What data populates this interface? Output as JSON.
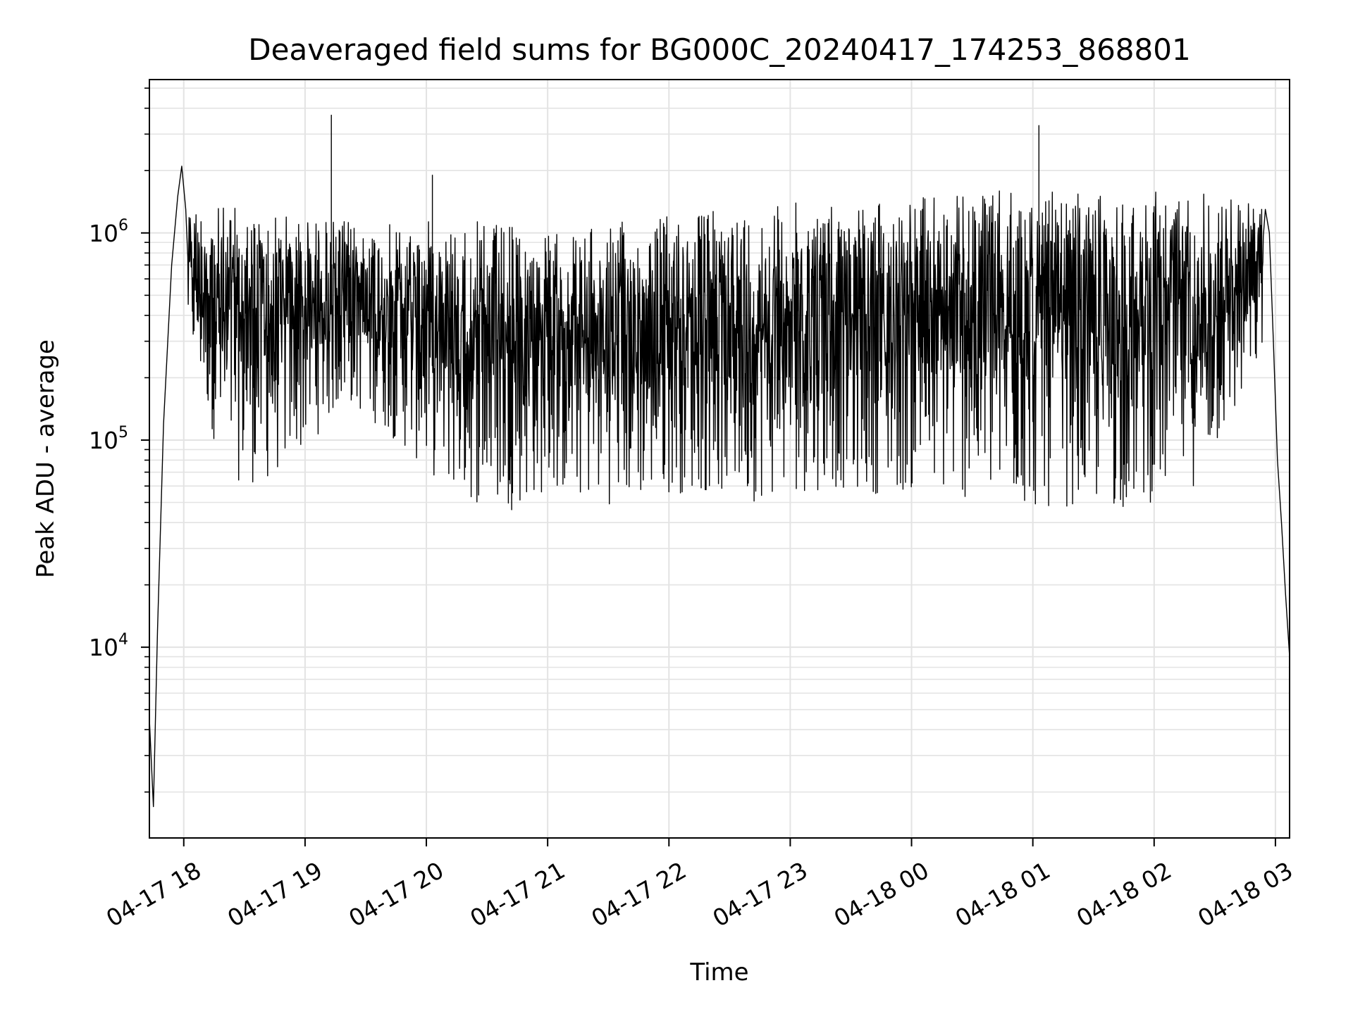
{
  "chart_data": {
    "type": "line",
    "title": "Deaveraged field sums for BG000C_20240417_174253_868801",
    "xlabel": "Time",
    "ylabel": "Peak ADU - average",
    "y_scale": "log",
    "ylim": [
      1200,
      5500000
    ],
    "xlim": [
      "2024-04-17 17:43",
      "2024-04-18 03:07"
    ],
    "grid": true,
    "legend": "none",
    "line_color": "#000000",
    "x_ticks": [
      {
        "t": "2024-04-17 18:00",
        "label": "04-17 18"
      },
      {
        "t": "2024-04-17 19:00",
        "label": "04-17 19"
      },
      {
        "t": "2024-04-17 20:00",
        "label": "04-17 20"
      },
      {
        "t": "2024-04-17 21:00",
        "label": "04-17 21"
      },
      {
        "t": "2024-04-17 22:00",
        "label": "04-17 22"
      },
      {
        "t": "2024-04-17 23:00",
        "label": "04-17 23"
      },
      {
        "t": "2024-04-18 00:00",
        "label": "04-18 00"
      },
      {
        "t": "2024-04-18 01:00",
        "label": "04-18 01"
      },
      {
        "t": "2024-04-18 02:00",
        "label": "04-18 02"
      },
      {
        "t": "2024-04-18 03:00",
        "label": "04-18 03"
      }
    ],
    "y_ticks": [
      {
        "value": 10000,
        "base": "10",
        "exp": "4"
      },
      {
        "value": 100000,
        "base": "10",
        "exp": "5"
      },
      {
        "value": 1000000,
        "base": "10",
        "exp": "6"
      }
    ],
    "series": [
      {
        "x": [
          "2024-04-17 17:43",
          "2024-04-17 17:45",
          "2024-04-17 17:47",
          "2024-04-17 17:50",
          "2024-04-17 17:54",
          "2024-04-17 17:57",
          "2024-04-17 17:59",
          "2024-04-17 18:01",
          "2024-04-17 18:03",
          "2024-04-17 18:10",
          "2024-04-17 18:14",
          "2024-04-17 18:18",
          "2024-04-17 18:25",
          "2024-04-17 18:30",
          "2024-04-17 18:35",
          "2024-04-17 18:45",
          "2024-04-17 18:55",
          "2024-04-17 19:10",
          "2024-04-17 19:13",
          "2024-04-17 19:16",
          "2024-04-17 19:30",
          "2024-04-17 19:45",
          "2024-04-17 20:00",
          "2024-04-17 20:03",
          "2024-04-17 20:06",
          "2024-04-17 20:30",
          "2024-04-17 21:00",
          "2024-04-17 21:30",
          "2024-04-17 22:00",
          "2024-04-17 22:30",
          "2024-04-17 23:00",
          "2024-04-17 23:30",
          "2024-04-18 00:00",
          "2024-04-18 00:30",
          "2024-04-18 01:00",
          "2024-04-18 01:03",
          "2024-04-18 01:06",
          "2024-04-18 01:30",
          "2024-04-18 02:00",
          "2024-04-18 02:30",
          "2024-04-18 02:55",
          "2024-04-18 02:57",
          "2024-04-18 02:59",
          "2024-04-18 03:01",
          "2024-04-18 03:03",
          "2024-04-18 03:05",
          "2024-04-18 03:07"
        ],
        "y": [
          4500,
          1700,
          12000,
          120000,
          700000,
          1500000,
          2100000,
          1300000,
          600000,
          500000,
          900000,
          300000,
          650000,
          500000,
          600000,
          700000,
          550000,
          600000,
          3700000,
          550000,
          600000,
          500000,
          600000,
          1900000,
          550000,
          450000,
          400000,
          380000,
          420000,
          450000,
          500000,
          520000,
          550000,
          580000,
          600000,
          3300000,
          600000,
          620000,
          650000,
          700000,
          1300000,
          1000000,
          300000,
          80000,
          40000,
          18000,
          9000
        ]
      }
    ],
    "envelope": {
      "x": [
        "2024-04-17 18:02",
        "2024-04-17 18:20",
        "2024-04-17 18:40",
        "2024-04-17 19:00",
        "2024-04-17 19:20",
        "2024-04-17 19:40",
        "2024-04-17 20:00",
        "2024-04-17 20:20",
        "2024-04-17 20:40",
        "2024-04-17 21:00",
        "2024-04-17 21:20",
        "2024-04-17 21:40",
        "2024-04-17 22:00",
        "2024-04-17 22:20",
        "2024-04-17 22:40",
        "2024-04-17 23:00",
        "2024-04-17 23:20",
        "2024-04-17 23:40",
        "2024-04-18 00:00",
        "2024-04-18 00:20",
        "2024-04-18 00:40",
        "2024-04-18 01:00",
        "2024-04-18 01:20",
        "2024-04-18 01:40",
        "2024-04-18 02:00",
        "2024-04-18 02:20",
        "2024-04-18 02:40",
        "2024-04-18 02:54"
      ],
      "upper": [
        1400000,
        1350000,
        1300000,
        1200000,
        1150000,
        1100000,
        1150000,
        1150000,
        1100000,
        1000000,
        1050000,
        1150000,
        1250000,
        1300000,
        1350000,
        1400000,
        1450000,
        1450000,
        1500000,
        1550000,
        1600000,
        1600000,
        1550000,
        1550000,
        1600000,
        1650000,
        1500000,
        1400000
      ],
      "lower": [
        300000,
        65000,
        60000,
        90000,
        150000,
        110000,
        70000,
        50000,
        45000,
        55000,
        50000,
        48000,
        55000,
        55000,
        50000,
        55000,
        58000,
        55000,
        55000,
        52000,
        48000,
        45000,
        48000,
        45000,
        50000,
        60000,
        120000,
        250000
      ]
    }
  }
}
